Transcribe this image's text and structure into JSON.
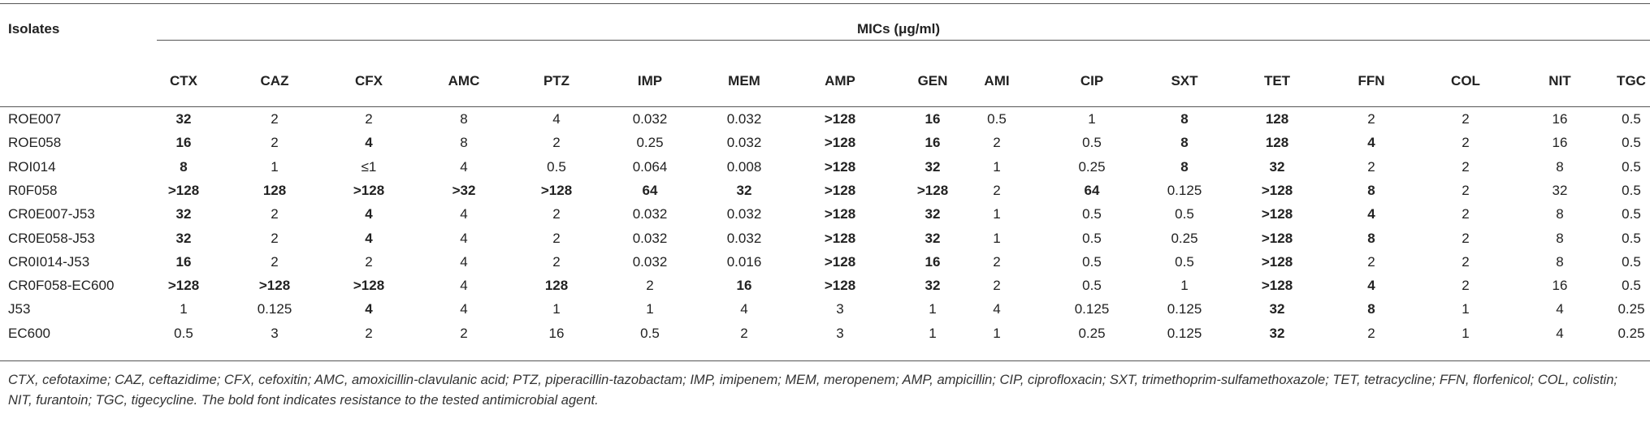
{
  "table": {
    "isolates_header": "Isolates",
    "group_header": "MICs (μg/ml)",
    "columns": [
      "CTX",
      "CAZ",
      "CFX",
      "AMC",
      "PTZ",
      "IMP",
      "MEM",
      "AMP",
      "GEN",
      "AMI",
      "CIP",
      "SXT",
      "TET",
      "FFN",
      "COL",
      "NIT",
      "TGC"
    ],
    "rows": [
      {
        "isolate": "ROE007",
        "values": [
          "32",
          "2",
          "2",
          "8",
          "4",
          "0.032",
          "0.032",
          ">128",
          "16",
          "0.5",
          "1",
          "8",
          "128",
          "2",
          "2",
          "16",
          "0.5"
        ],
        "bold": [
          true,
          false,
          false,
          false,
          false,
          false,
          false,
          true,
          true,
          false,
          false,
          true,
          true,
          false,
          false,
          false,
          false
        ]
      },
      {
        "isolate": "ROE058",
        "values": [
          "16",
          "2",
          "4",
          "8",
          "2",
          "0.25",
          "0.032",
          ">128",
          "16",
          "2",
          "0.5",
          "8",
          "128",
          "4",
          "2",
          "16",
          "0.5"
        ],
        "bold": [
          true,
          false,
          true,
          false,
          false,
          false,
          false,
          true,
          true,
          false,
          false,
          true,
          true,
          true,
          false,
          false,
          false
        ]
      },
      {
        "isolate": "ROI014",
        "values": [
          "8",
          "1",
          "≤1",
          "4",
          "0.5",
          "0.064",
          "0.008",
          ">128",
          "32",
          "1",
          "0.25",
          "8",
          "32",
          "2",
          "2",
          "8",
          "0.5"
        ],
        "bold": [
          true,
          false,
          false,
          false,
          false,
          false,
          false,
          true,
          true,
          false,
          false,
          true,
          true,
          false,
          false,
          false,
          false
        ]
      },
      {
        "isolate": "R0F058",
        "values": [
          ">128",
          "128",
          ">128",
          ">32",
          ">128",
          "64",
          "32",
          ">128",
          ">128",
          "2",
          "64",
          "0.125",
          ">128",
          "8",
          "2",
          "32",
          "0.5"
        ],
        "bold": [
          true,
          true,
          true,
          true,
          true,
          true,
          true,
          true,
          true,
          false,
          true,
          false,
          true,
          true,
          false,
          false,
          false
        ]
      },
      {
        "isolate": "CR0E007-J53",
        "values": [
          "32",
          "2",
          "4",
          "4",
          "2",
          "0.032",
          "0.032",
          ">128",
          "32",
          "1",
          "0.5",
          "0.5",
          ">128",
          "4",
          "2",
          "8",
          "0.5"
        ],
        "bold": [
          true,
          false,
          true,
          false,
          false,
          false,
          false,
          true,
          true,
          false,
          false,
          false,
          true,
          true,
          false,
          false,
          false
        ]
      },
      {
        "isolate": "CR0E058-J53",
        "values": [
          "32",
          "2",
          "4",
          "4",
          "2",
          "0.032",
          "0.032",
          ">128",
          "32",
          "1",
          "0.5",
          "0.25",
          ">128",
          "8",
          "2",
          "8",
          "0.5"
        ],
        "bold": [
          true,
          false,
          true,
          false,
          false,
          false,
          false,
          true,
          true,
          false,
          false,
          false,
          true,
          true,
          false,
          false,
          false
        ]
      },
      {
        "isolate": "CR0I014-J53",
        "values": [
          "16",
          "2",
          "2",
          "4",
          "2",
          "0.032",
          "0.016",
          ">128",
          "16",
          "2",
          "0.5",
          "0.5",
          ">128",
          "2",
          "2",
          "8",
          "0.5"
        ],
        "bold": [
          true,
          false,
          false,
          false,
          false,
          false,
          false,
          true,
          true,
          false,
          false,
          false,
          true,
          false,
          false,
          false,
          false
        ]
      },
      {
        "isolate": "CR0F058-EC600",
        "values": [
          ">128",
          ">128",
          ">128",
          "4",
          "128",
          "2",
          "16",
          ">128",
          "32",
          "2",
          "0.5",
          "1",
          ">128",
          "4",
          "2",
          "16",
          "0.5"
        ],
        "bold": [
          true,
          true,
          true,
          false,
          true,
          false,
          true,
          true,
          true,
          false,
          false,
          false,
          true,
          true,
          false,
          false,
          false
        ]
      },
      {
        "isolate": "J53",
        "values": [
          "1",
          "0.125",
          "4",
          "4",
          "1",
          "1",
          "4",
          "3",
          "1",
          "4",
          "0.125",
          "0.125",
          "32",
          "8",
          "1",
          "4",
          "0.25"
        ],
        "bold": [
          false,
          false,
          true,
          false,
          false,
          false,
          false,
          false,
          false,
          false,
          false,
          false,
          true,
          true,
          false,
          false,
          false
        ]
      },
      {
        "isolate": "EC600",
        "values": [
          "0.5",
          "3",
          "2",
          "2",
          "16",
          "0.5",
          "2",
          "3",
          "1",
          "1",
          "0.25",
          "0.125",
          "32",
          "2",
          "1",
          "4",
          "0.25"
        ],
        "bold": [
          false,
          false,
          false,
          false,
          false,
          false,
          false,
          false,
          false,
          false,
          false,
          false,
          true,
          false,
          false,
          false,
          false
        ]
      }
    ],
    "footnote": "CTX, cefotaxime; CAZ, ceftazidime; CFX, cefoxitin; AMC, amoxicillin-clavulanic acid; PTZ, piperacillin-tazobactam; IMP, imipenem; MEM, meropenem; AMP, ampicillin; CIP, ciprofloxacin; SXT, trimethoprim-sulfamethoxazole; TET, tetracycline; FFN, florfenicol; COL, colistin; NIT, furantoin; TGC, tigecycline. The bold font indicates resistance to the tested antimicrobial agent."
  }
}
